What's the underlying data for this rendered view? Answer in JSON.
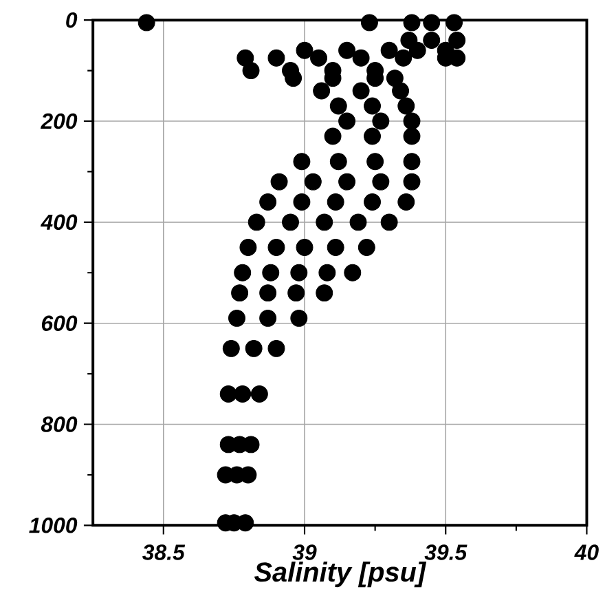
{
  "chart_data": {
    "type": "scatter",
    "xlabel": "Salinity [psu]",
    "xlim": [
      38.25,
      40
    ],
    "ylim": [
      1000,
      0
    ],
    "xticks": [
      38.5,
      {
        "value": 38.75,
        "label": null
      },
      39,
      {
        "value": 39.25,
        "label": null
      },
      39.5,
      {
        "value": 39.75,
        "label": null
      },
      40
    ],
    "yticks": [
      0,
      {
        "value": 100,
        "label": null
      },
      200,
      {
        "value": 300,
        "label": null
      },
      400,
      {
        "value": 500,
        "label": null
      },
      600,
      {
        "value": 700,
        "label": null
      },
      800,
      {
        "value": 900,
        "label": null
      },
      1000
    ],
    "grid": true,
    "marker": "circle",
    "series": [
      {
        "color": "#000000",
        "x": [
          38.44,
          39.23,
          39.38,
          39.45,
          39.53,
          39.37,
          39.45,
          39.54,
          39.0,
          39.15,
          39.3,
          39.4,
          39.5,
          38.79,
          38.9,
          39.05,
          39.2,
          39.35,
          39.5,
          39.54,
          38.81,
          38.95,
          39.1,
          39.25,
          38.96,
          39.1,
          39.25,
          39.32,
          39.06,
          39.2,
          39.34,
          39.12,
          39.24,
          39.36,
          39.15,
          39.27,
          39.38,
          39.1,
          39.24,
          39.38,
          38.99,
          39.12,
          39.25,
          39.38,
          38.91,
          39.03,
          39.15,
          39.27,
          39.38,
          38.87,
          38.99,
          39.11,
          39.24,
          39.36,
          38.83,
          38.95,
          39.07,
          39.19,
          39.3,
          38.8,
          38.9,
          39.0,
          39.11,
          39.22,
          38.78,
          38.88,
          38.98,
          39.08,
          39.17,
          38.77,
          38.87,
          38.97,
          39.07,
          38.76,
          38.87,
          38.98,
          38.74,
          38.82,
          38.9,
          38.73,
          38.78,
          38.84,
          38.73,
          38.77,
          38.81,
          38.72,
          38.76,
          38.8,
          38.72,
          38.75,
          38.79
        ],
        "values": [
          5,
          5,
          5,
          5,
          5,
          40,
          40,
          40,
          60,
          60,
          60,
          60,
          60,
          75,
          75,
          75,
          75,
          75,
          75,
          75,
          100,
          100,
          100,
          100,
          115,
          115,
          115,
          115,
          140,
          140,
          140,
          170,
          170,
          170,
          200,
          200,
          200,
          230,
          230,
          230,
          280,
          280,
          280,
          280,
          320,
          320,
          320,
          320,
          320,
          360,
          360,
          360,
          360,
          360,
          400,
          400,
          400,
          400,
          400,
          450,
          450,
          450,
          450,
          450,
          500,
          500,
          500,
          500,
          500,
          540,
          540,
          540,
          540,
          590,
          590,
          590,
          650,
          650,
          650,
          740,
          740,
          740,
          840,
          840,
          840,
          900,
          900,
          900,
          995,
          995,
          995
        ]
      }
    ]
  }
}
